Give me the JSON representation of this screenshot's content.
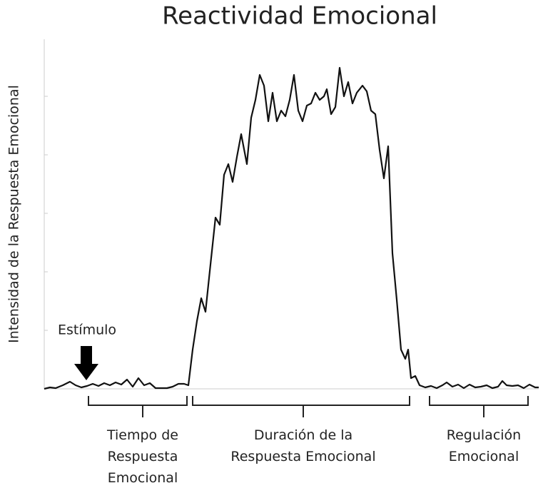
{
  "chart_data": {
    "type": "line",
    "title": "Reactividad Emocional",
    "y_label": "Intensidad de la Respuesta Emocional",
    "annotation": "Estímulo",
    "phases": [
      "Tiempo de Respuesta Emocional",
      "Duración de la Respuesta Emocional",
      "Regulación Emocional"
    ],
    "color": "#111111",
    "xlim": [
      0,
      693
    ],
    "ylim": [
      0,
      49
    ],
    "x": [
      0,
      8,
      16,
      26,
      36,
      44,
      52,
      60,
      68,
      76,
      84,
      92,
      100,
      108,
      116,
      124,
      132,
      140,
      148,
      156,
      164,
      172,
      180,
      188,
      196,
      202,
      208,
      214,
      220,
      226,
      232,
      240,
      246,
      252,
      258,
      264,
      270,
      276,
      284,
      290,
      296,
      302,
      308,
      314,
      320,
      326,
      332,
      338,
      344,
      350,
      356,
      362,
      368,
      374,
      380,
      386,
      392,
      396,
      402,
      408,
      414,
      420,
      426,
      432,
      438,
      446,
      452,
      458,
      464,
      470,
      476,
      482,
      488,
      494,
      500,
      506,
      510,
      514,
      520,
      526,
      534,
      542,
      550,
      558,
      564,
      572,
      580,
      588,
      596,
      604,
      612,
      620,
      628,
      636,
      642,
      648,
      656,
      664,
      672,
      680,
      688,
      693
    ],
    "values": [
      0,
      0.2,
      0.1,
      0.5,
      1.0,
      0.5,
      0.2,
      0.4,
      0.7,
      0.4,
      0.8,
      0.5,
      0.9,
      0.6,
      1.3,
      0.3,
      1.5,
      0.5,
      0.8,
      0.1,
      0.1,
      0.1,
      0.3,
      0.7,
      0.7,
      0.5,
      5.5,
      9.5,
      12.7,
      10.8,
      16.5,
      24,
      23,
      30,
      31.5,
      29,
      32.5,
      35.7,
      31.5,
      38,
      40.5,
      44,
      42.5,
      37.5,
      41.5,
      37.5,
      39,
      38.2,
      40.5,
      44,
      39,
      37.5,
      39.7,
      40,
      41.5,
      40.5,
      41,
      42,
      38.5,
      39.5,
      45,
      41,
      43,
      40,
      41.5,
      42.5,
      41.7,
      39,
      38.5,
      33.5,
      29.5,
      34,
      19,
      12.5,
      5.5,
      4.2,
      5.5,
      1.5,
      1.8,
      0.5,
      0.2,
      0.4,
      0.1,
      0.5,
      0.9,
      0.3,
      0.6,
      0.1,
      0.6,
      0.2,
      0.3,
      0.5,
      0.1,
      0.3,
      1.1,
      0.5,
      0.4,
      0.5,
      0.1,
      0.6,
      0.2,
      0.2
    ]
  }
}
